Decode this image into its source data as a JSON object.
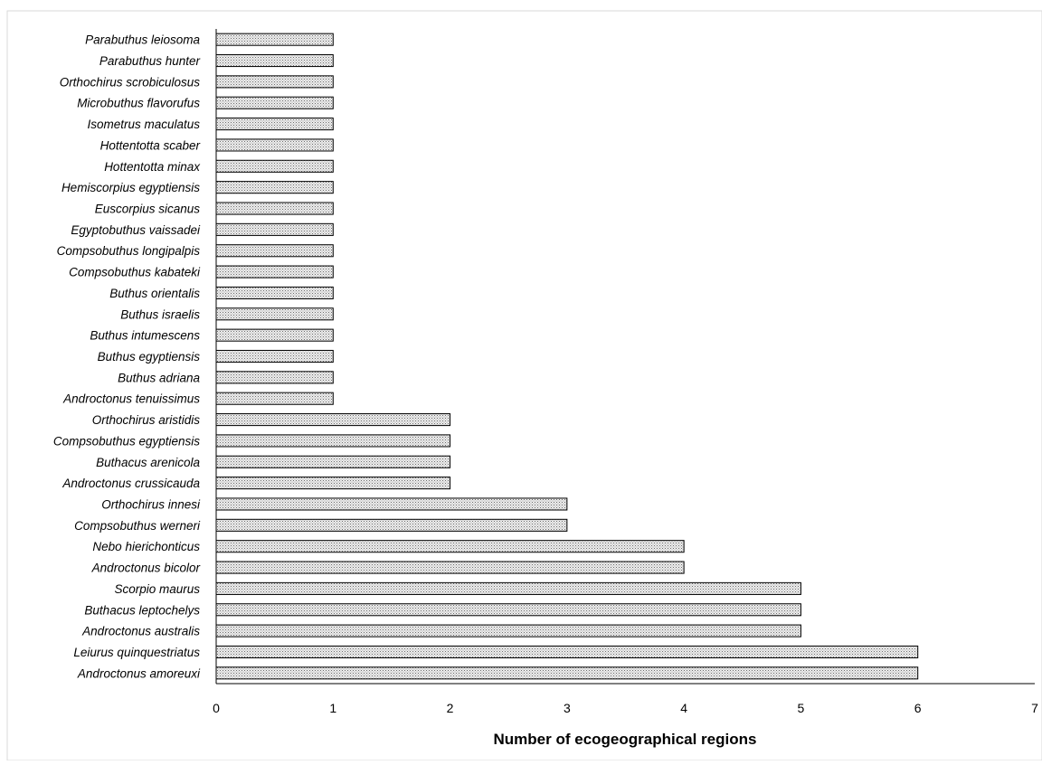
{
  "chart_data": {
    "type": "bar",
    "orientation": "horizontal",
    "title": "",
    "xlabel": "Number of ecogeographical regions",
    "ylabel": "",
    "xlim": [
      0,
      7
    ],
    "xticks": [
      0,
      1,
      2,
      3,
      4,
      5,
      6,
      7
    ],
    "grid": false,
    "legend": "none",
    "bar_fill": "#d9d9d9",
    "bar_stroke": "#000000",
    "categories": [
      "Androctonus amoreuxi",
      "Leiurus quinquestriatus",
      "Androctonus australis",
      "Buthacus leptochelys",
      "Scorpio maurus",
      "Androctonus bicolor",
      "Nebo hierichonticus",
      "Compsobuthus werneri",
      "Orthochirus innesi",
      "Androctonus crussicauda",
      "Buthacus arenicola",
      "Compsobuthus egyptiensis",
      "Orthochirus aristidis",
      "Androctonus tenuissimus",
      "Buthus adriana",
      "Buthus egyptiensis",
      "Buthus intumescens",
      "Buthus israelis",
      "Buthus orientalis",
      "Compsobuthus kabateki",
      "Compsobuthus longipalpis",
      "Egyptobuthus vaissadei",
      "Euscorpius sicanus",
      "Hemiscorpius egyptiensis",
      "Hottentotta minax",
      "Hottentotta scaber",
      "Isometrus maculatus",
      "Microbuthus flavorufus",
      "Orthochirus scrobiculosus",
      "Parabuthus hunter",
      "Parabuthus leiosoma"
    ],
    "values": [
      6,
      6,
      5,
      5,
      5,
      4,
      4,
      3,
      3,
      2,
      2,
      2,
      2,
      1,
      1,
      1,
      1,
      1,
      1,
      1,
      1,
      1,
      1,
      1,
      1,
      1,
      1,
      1,
      1,
      1,
      1
    ]
  }
}
